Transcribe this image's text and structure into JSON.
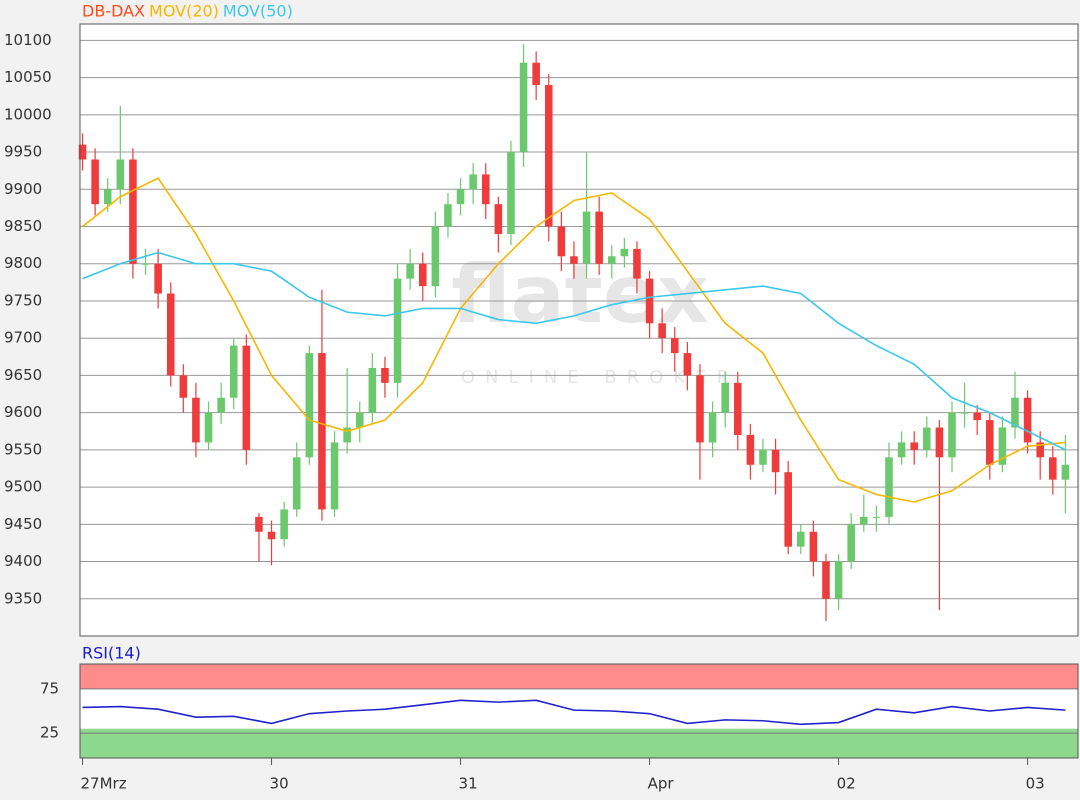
{
  "chart_data": [
    {
      "type": "candlestick",
      "legend": [
        "DB-DAX",
        "MOV(20)",
        "MOV(50)"
      ],
      "legend_colors": [
        "#ff4a1a",
        "#f5b700",
        "#3cc8e8"
      ],
      "watermark": "flatex",
      "watermark_sub": "ONLINE BROKER",
      "up_color": "#6cc86c",
      "down_color": "#ee3b3b",
      "xlim": [
        -0.2,
        79
      ],
      "ylim": [
        9300,
        10122
      ],
      "xticks": [
        {
          "value": 0,
          "label": "27Mrz"
        },
        {
          "value": 15,
          "label": "30"
        },
        {
          "value": 30,
          "label": "31"
        },
        {
          "value": 45,
          "label": "Apr"
        },
        {
          "value": 60,
          "label": "02"
        },
        {
          "value": 75,
          "label": "03"
        }
      ],
      "yticks": [
        9350,
        9400,
        9450,
        9500,
        9550,
        9600,
        9650,
        9700,
        9750,
        9800,
        9850,
        9900,
        9950,
        10000,
        10050,
        10100
      ],
      "grid": true,
      "open": [
        9960,
        9940,
        9880,
        9900,
        9940,
        9800,
        9800,
        9760,
        9650,
        9620,
        9560,
        9600,
        9620,
        9690,
        9460,
        9440,
        9430,
        9470,
        9540,
        9680,
        9470,
        9560,
        9580,
        9600,
        9660,
        9640,
        9780,
        9800,
        9770,
        9850,
        9880,
        9900,
        9920,
        9880,
        9840,
        9950,
        10070,
        10040,
        9850,
        9810,
        9800,
        9870,
        9800,
        9810,
        9820,
        9780,
        9720,
        9700,
        9680,
        9650,
        9560,
        9600,
        9640,
        9570,
        9530,
        9550,
        9520,
        9420,
        9440,
        9400,
        9350,
        9400,
        9450,
        9460,
        9460,
        9540,
        9560,
        9550,
        9580,
        9540,
        9600,
        9600,
        9590,
        9530,
        9580,
        9620,
        9560,
        9540,
        9510
      ],
      "high": [
        9975,
        9955,
        9915,
        10012,
        9955,
        9820,
        9820,
        9775,
        9665,
        9640,
        9615,
        9640,
        9700,
        9705,
        9465,
        9455,
        9480,
        9560,
        9690,
        9765,
        9575,
        9660,
        9615,
        9680,
        9675,
        9800,
        9820,
        9815,
        9870,
        9895,
        9915,
        9935,
        9935,
        9890,
        9965,
        10095,
        10085,
        10055,
        9870,
        9830,
        9950,
        9890,
        9825,
        9835,
        9830,
        9790,
        9740,
        9715,
        9695,
        9665,
        9615,
        9655,
        9655,
        9585,
        9565,
        9565,
        9535,
        9450,
        9455,
        9410,
        9410,
        9465,
        9490,
        9475,
        9560,
        9575,
        9575,
        9595,
        9590,
        9615,
        9640,
        9610,
        9600,
        9595,
        9655,
        9630,
        9575,
        9555,
        9570
      ],
      "low": [
        9925,
        9865,
        9870,
        9880,
        9780,
        9785,
        9740,
        9635,
        9600,
        9540,
        9550,
        9585,
        9605,
        9530,
        9400,
        9395,
        9420,
        9460,
        9530,
        9455,
        9460,
        9545,
        9560,
        9585,
        9620,
        9620,
        9765,
        9750,
        9755,
        9835,
        9865,
        9880,
        9860,
        9815,
        9825,
        9930,
        10020,
        9830,
        9790,
        9780,
        9780,
        9785,
        9780,
        9795,
        9760,
        9700,
        9680,
        9655,
        9630,
        9510,
        9540,
        9580,
        9550,
        9510,
        9520,
        9490,
        9410,
        9410,
        9380,
        9320,
        9335,
        9390,
        9440,
        9440,
        9450,
        9530,
        9530,
        9540,
        9335,
        9520,
        9580,
        9570,
        9510,
        9520,
        9565,
        9545,
        9510,
        9490,
        9465
      ],
      "close": [
        9940,
        9880,
        9900,
        9940,
        9800,
        9800,
        9760,
        9650,
        9620,
        9560,
        9600,
        9620,
        9690,
        9550,
        9440,
        9430,
        9470,
        9540,
        9680,
        9470,
        9560,
        9580,
        9600,
        9660,
        9640,
        9780,
        9800,
        9770,
        9850,
        9880,
        9900,
        9920,
        9880,
        9840,
        9950,
        10070,
        10040,
        9850,
        9810,
        9800,
        9870,
        9800,
        9810,
        9820,
        9780,
        9720,
        9700,
        9680,
        9650,
        9560,
        9600,
        9640,
        9570,
        9530,
        9550,
        9520,
        9420,
        9440,
        9400,
        9350,
        9400,
        9450,
        9460,
        9460,
        9540,
        9560,
        9550,
        9580,
        9540,
        9600,
        9600,
        9590,
        9530,
        9580,
        9620,
        9560,
        9540,
        9510,
        9530
      ],
      "series": [
        {
          "name": "MOV(20)",
          "color": "#f5b700",
          "x": [
            0,
            3,
            6,
            9,
            12,
            15,
            18,
            21,
            24,
            27,
            30,
            33,
            36,
            39,
            42,
            45,
            48,
            51,
            54,
            57,
            60,
            63,
            66,
            69,
            72,
            75,
            78
          ],
          "values": [
            9850,
            9890,
            9915,
            9840,
            9750,
            9650,
            9590,
            9575,
            9590,
            9640,
            9740,
            9800,
            9850,
            9885,
            9895,
            9860,
            9790,
            9720,
            9680,
            9590,
            9510,
            9490,
            9480,
            9495,
            9530,
            9555,
            9560
          ]
        },
        {
          "name": "MOV(50)",
          "color": "#3cc8e8",
          "x": [
            0,
            3,
            6,
            9,
            12,
            15,
            18,
            21,
            24,
            27,
            30,
            33,
            36,
            39,
            42,
            45,
            48,
            51,
            54,
            57,
            60,
            63,
            66,
            69,
            72,
            75,
            78
          ],
          "values": [
            9780,
            9800,
            9815,
            9800,
            9800,
            9790,
            9755,
            9735,
            9730,
            9740,
            9740,
            9725,
            9720,
            9730,
            9745,
            9755,
            9760,
            9765,
            9770,
            9760,
            9720,
            9690,
            9665,
            9620,
            9600,
            9575,
            9550
          ]
        }
      ]
    },
    {
      "type": "line",
      "title": "RSI(14)",
      "title_color": "#1a1acc",
      "xlim": [
        -0.2,
        79
      ],
      "ylim": [
        -3,
        103
      ],
      "yticks": [
        25,
        75
      ],
      "bands": [
        {
          "from": 75,
          "to": 103,
          "color": "#ff8c8c"
        },
        {
          "from": -3,
          "to": 30,
          "color": "#8cd88c"
        }
      ],
      "series": [
        {
          "name": "RSI(14)",
          "color": "#2222cc",
          "x": [
            0,
            3,
            6,
            9,
            12,
            15,
            18,
            21,
            24,
            27,
            30,
            33,
            36,
            39,
            42,
            45,
            48,
            51,
            54,
            57,
            60,
            63,
            66,
            69,
            72,
            75,
            78
          ],
          "values": [
            54,
            55,
            52,
            43,
            44,
            36,
            47,
            50,
            52,
            57,
            62,
            60,
            62,
            51,
            50,
            47,
            36,
            40,
            39,
            35,
            37,
            52,
            48,
            55,
            50,
            54,
            51
          ]
        }
      ]
    }
  ]
}
